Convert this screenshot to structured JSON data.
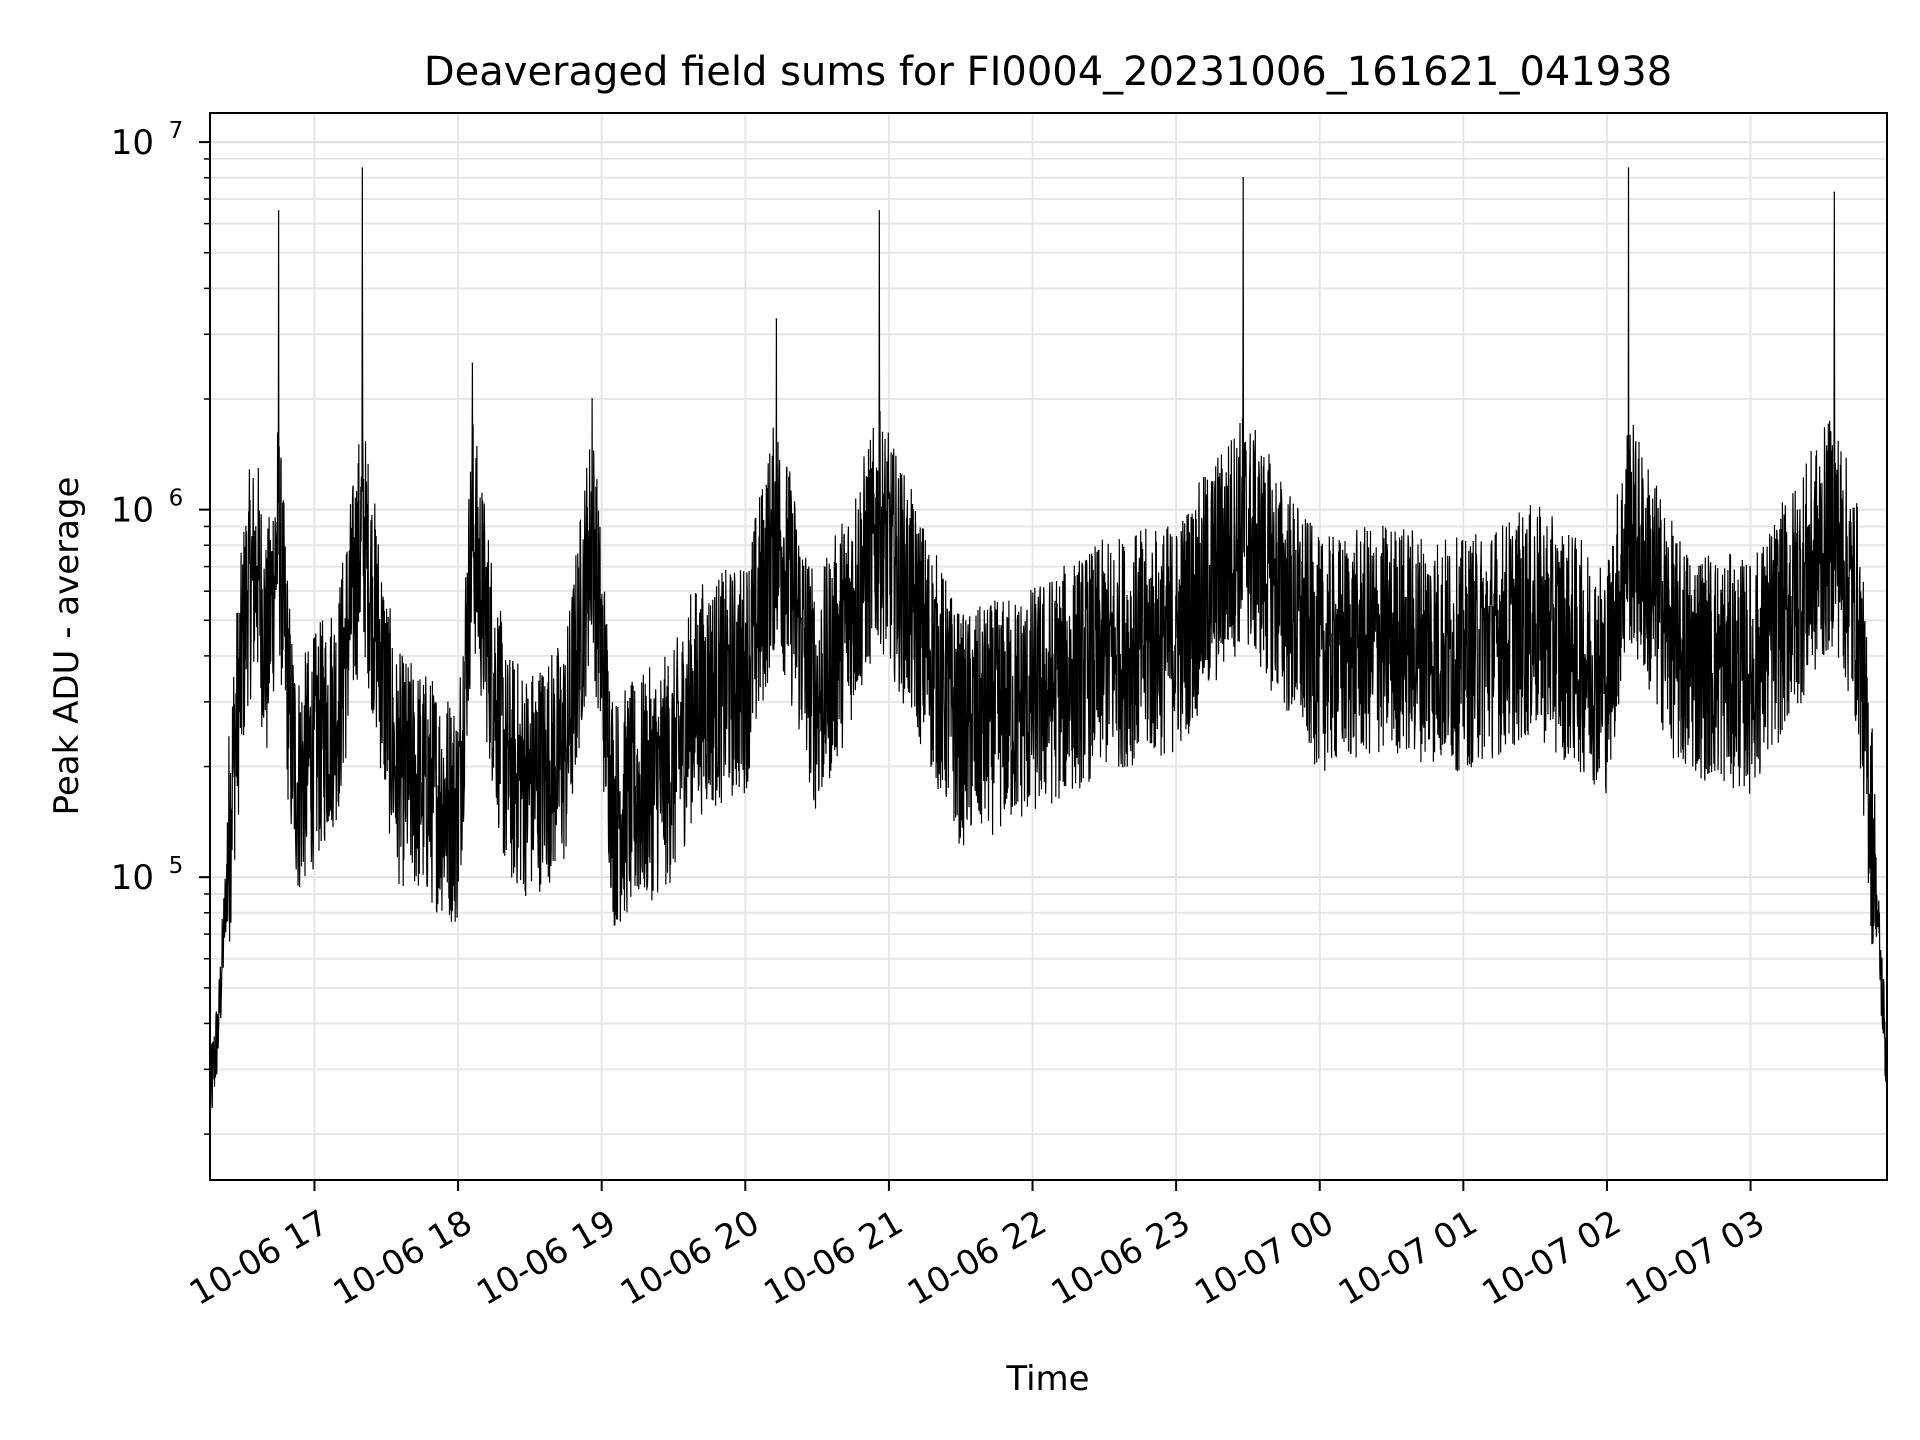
{
  "chart_data": {
    "type": "line",
    "title": "Deaveraged field sums for FI0004_20231006_161621_041938",
    "xlabel": "Time",
    "ylabel": "Peak ADU - average",
    "yscale": "log",
    "ylim": [
      15000,
      12000000
    ],
    "xlim": [
      "2023-10-06 16:16:21",
      "2023-10-07 03:57:00"
    ],
    "grid": true,
    "x_tick_labels": [
      "10-06 17",
      "10-06 18",
      "10-06 19",
      "10-06 20",
      "10-06 21",
      "10-06 22",
      "10-06 23",
      "10-07 00",
      "10-07 01",
      "10-07 02",
      "10-07 03"
    ],
    "y_tick_labels": [
      {
        "base": "10",
        "exp": "5",
        "value": 100000
      },
      {
        "base": "10",
        "exp": "6",
        "value": 1000000
      },
      {
        "base": "10",
        "exp": "7",
        "value": 10000000
      }
    ],
    "line_color": "#000000",
    "series": [
      {
        "x": [
          "2023-10-06 16:16:21",
          "2023-10-06 16:20:00",
          "2023-10-06 16:26:00",
          "2023-10-06 16:32:00",
          "2023-10-06 16:36:00",
          "2023-10-06 16:40:00",
          "2023-10-06 16:45:00",
          "2023-10-06 16:50:00",
          "2023-10-06 16:53:00",
          "2023-10-06 17:10:00",
          "2023-10-06 17:20:00",
          "2023-10-06 17:34:00",
          "2023-10-06 17:45:00",
          "2023-10-06 18:00:00",
          "2023-10-06 18:06:00",
          "2023-10-06 18:20:00",
          "2023-10-06 18:30:00",
          "2023-10-06 18:45:00",
          "2023-10-06 18:56:00",
          "2023-10-06 19:05:00",
          "2023-10-06 19:30:00",
          "2023-10-06 19:38:00",
          "2023-10-06 20:00:00",
          "2023-10-06 20:13:00",
          "2023-10-06 20:30:00",
          "2023-10-06 20:56:00",
          "2023-10-06 21:30:00",
          "2023-10-06 22:00:00",
          "2023-10-06 22:30:00",
          "2023-10-06 23:00:00",
          "2023-10-06 23:28:00",
          "2023-10-07 00:00:00",
          "2023-10-07 00:30:00",
          "2023-10-07 01:00:00",
          "2023-10-07 01:30:00",
          "2023-10-07 02:00:00",
          "2023-10-07 02:09:00",
          "2023-10-07 02:30:00",
          "2023-10-07 03:00:00",
          "2023-10-07 03:35:00",
          "2023-10-07 03:45:00",
          "2023-10-07 03:52:00",
          "2023-10-07 03:57:00"
        ],
        "y": [
          25000,
          40000,
          200000,
          600000,
          700000,
          400000,
          6500000,
          250000,
          180000,
          300000,
          8500000,
          200000,
          180000,
          150000,
          2500000,
          200000,
          180000,
          220000,
          2000000,
          150000,
          200000,
          300000,
          350000,
          3300000,
          300000,
          6500000,
          250000,
          300000,
          400000,
          450000,
          8000000,
          400000,
          450000,
          400000,
          500000,
          350000,
          8500000,
          400000,
          350000,
          7300000,
          500000,
          100000,
          30000
        ]
      }
    ]
  }
}
